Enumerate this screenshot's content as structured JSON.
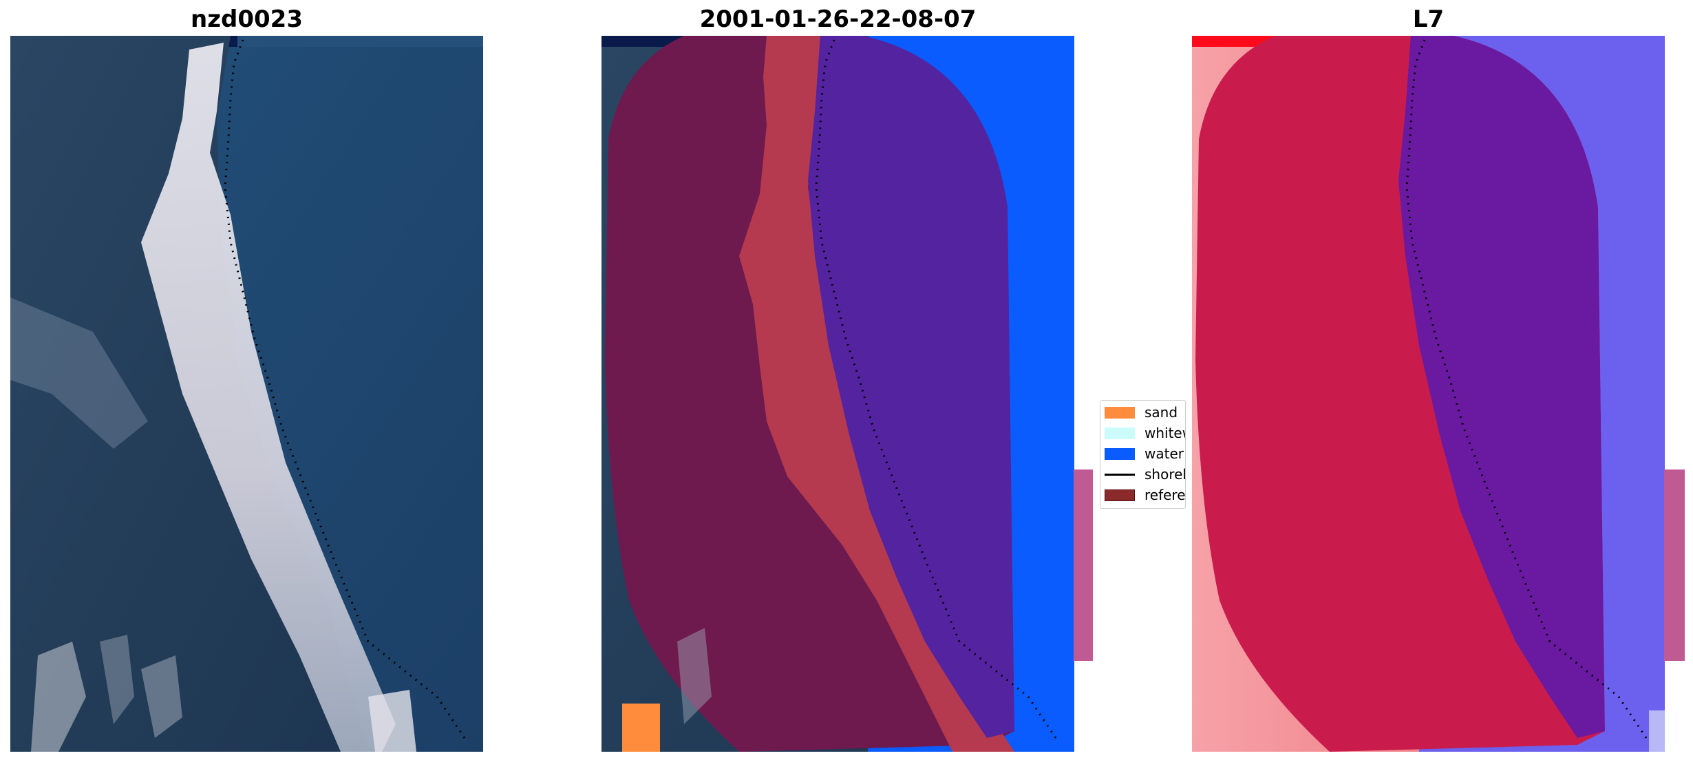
{
  "panels": {
    "left": {
      "title": "nzd0023"
    },
    "middle": {
      "title": "2001-01-26-22-08-07"
    },
    "right": {
      "title": "L7"
    }
  },
  "legend": {
    "items": [
      {
        "label": "sand",
        "color": "#ff8c3c",
        "kind": "patch"
      },
      {
        "label": "whitew",
        "color": "#ccfbfb",
        "kind": "patch"
      },
      {
        "label": "water",
        "color": "#0a5cff",
        "kind": "patch"
      },
      {
        "label": "shorel",
        "color": "#000000",
        "kind": "line"
      },
      {
        "label": "referer",
        "color": "#8b2a2a",
        "kind": "patch"
      }
    ]
  },
  "colors": {
    "sea": "#264b73",
    "land_dark": "#1f3a55",
    "beach": "#e6e4ee",
    "reference_overlay": "#6e1a4f",
    "classified_sand_red": "#b63a4f",
    "classified_water_purple": "#5323a0",
    "index_red": "#c91c4c",
    "index_light": "#f7a0a6",
    "index_blue": "#6b61ee"
  }
}
